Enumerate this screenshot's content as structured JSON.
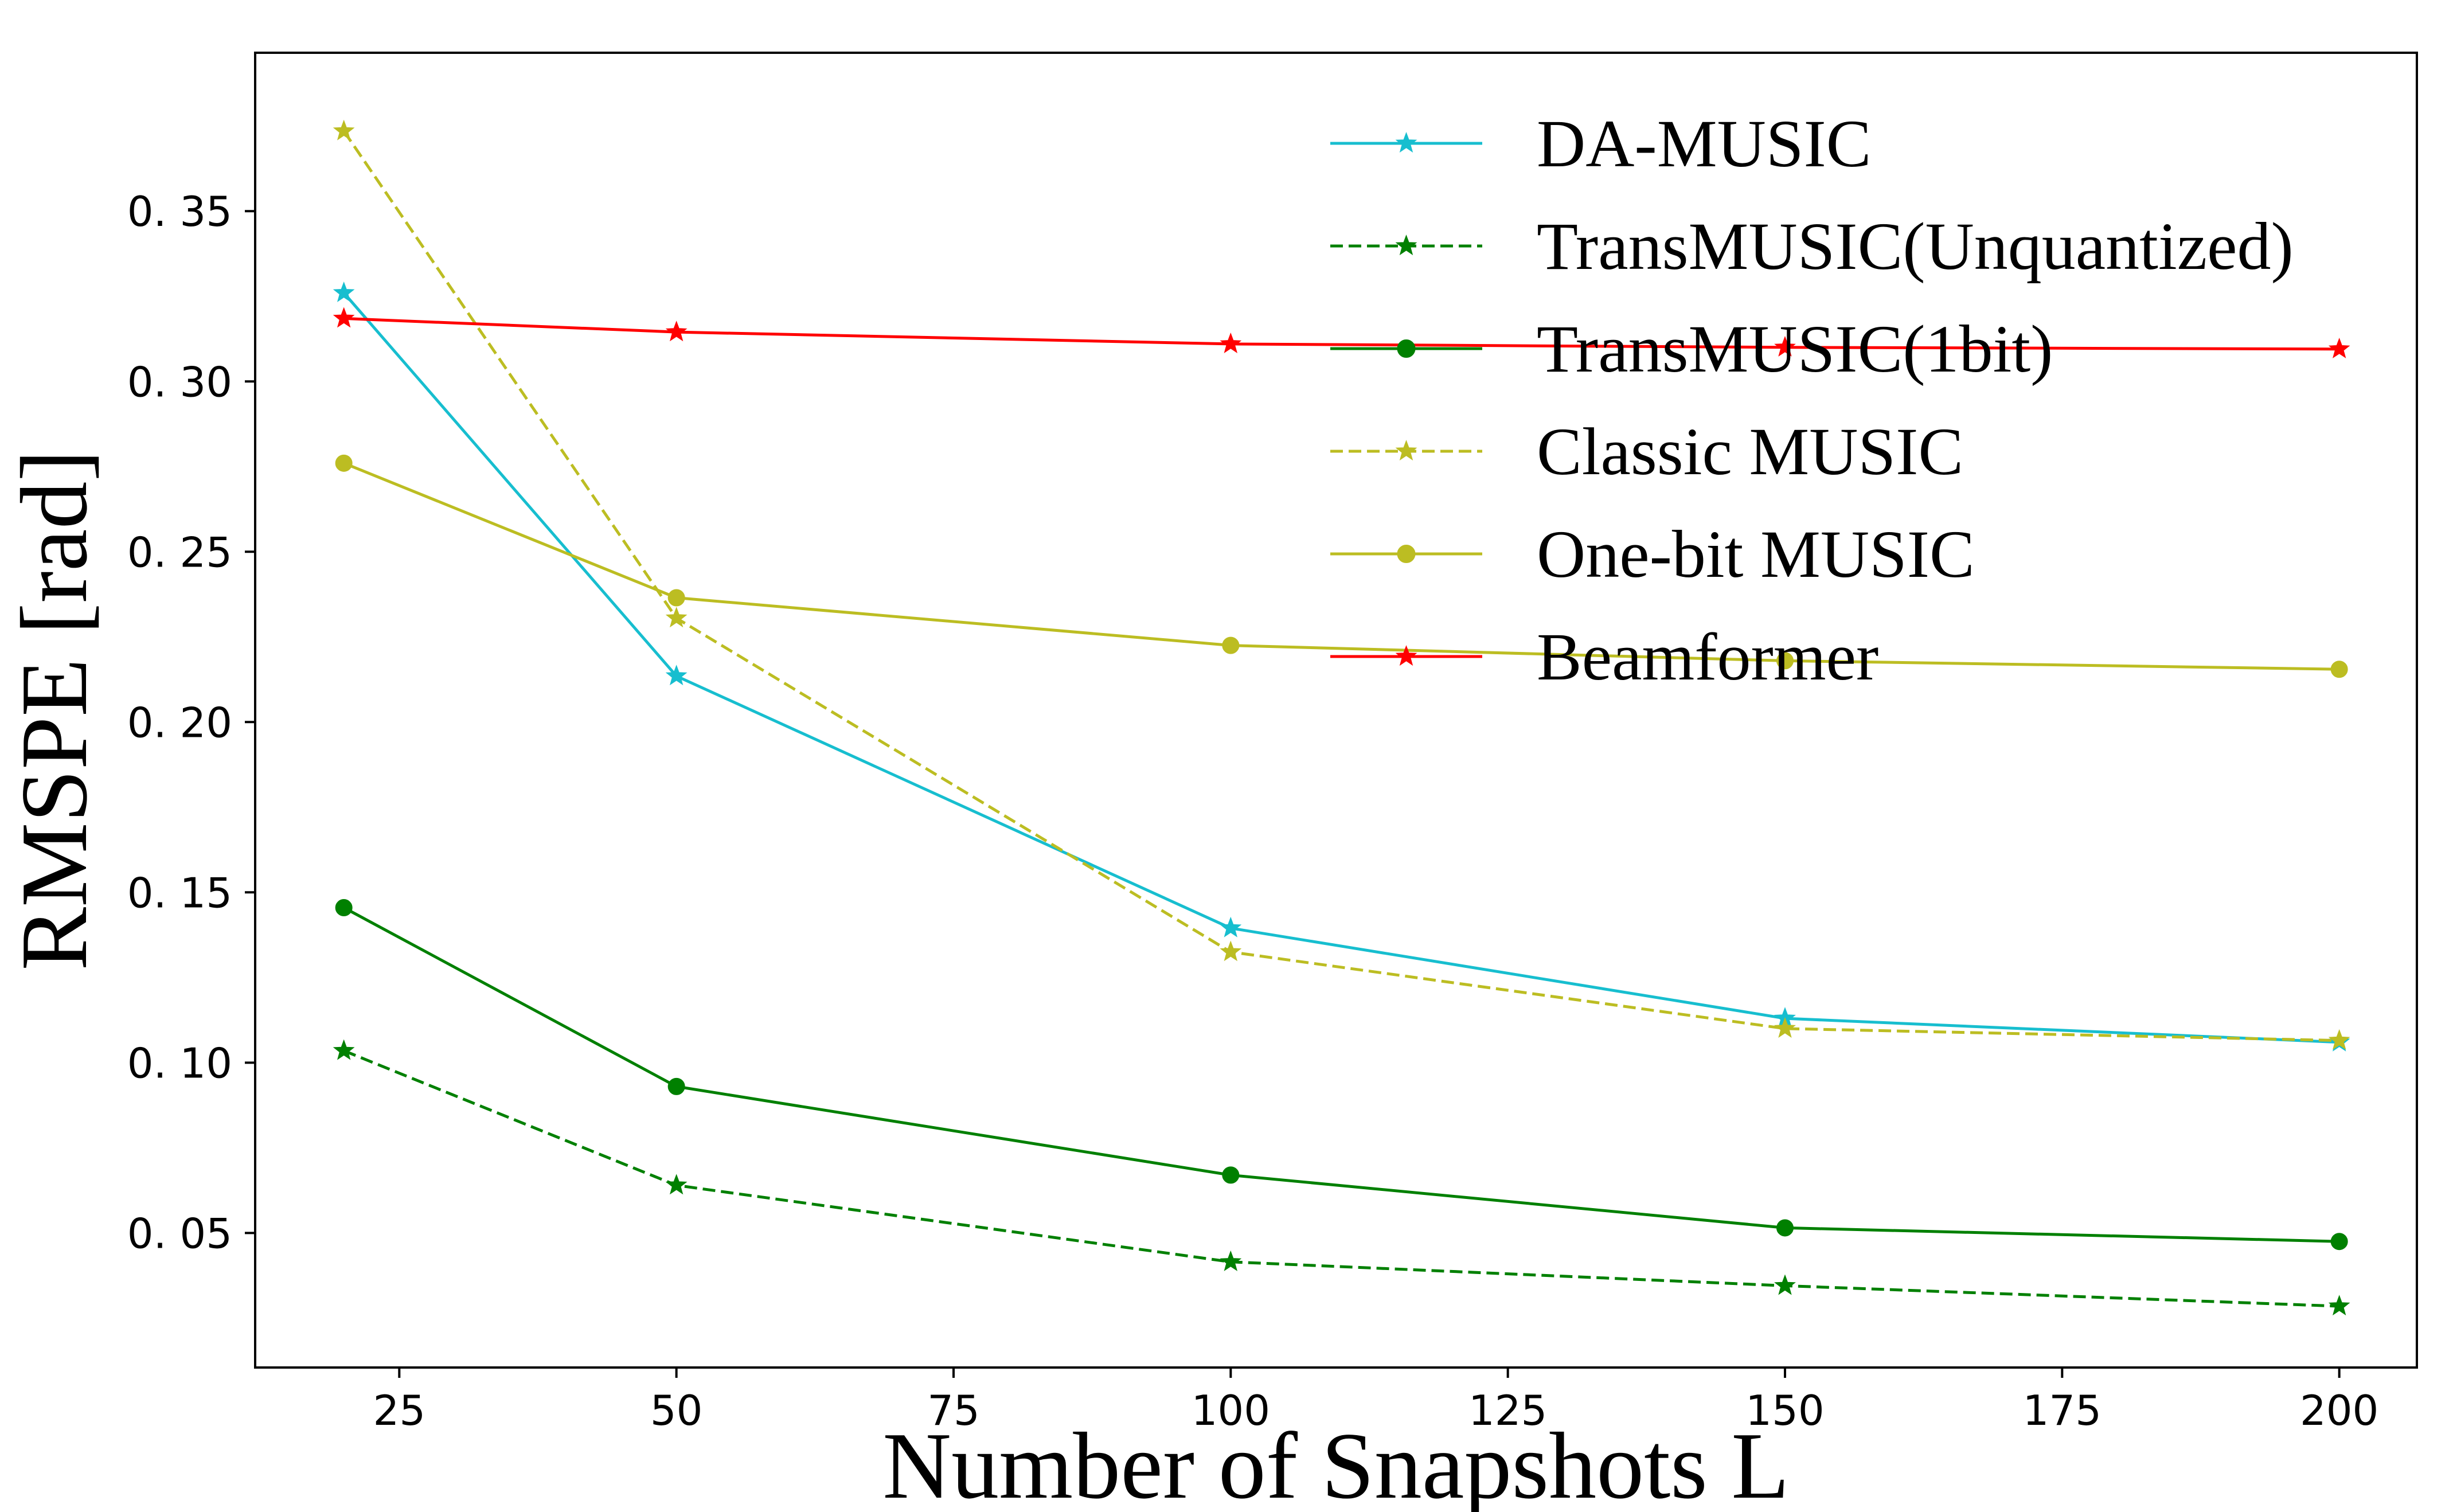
{
  "chart_data": {
    "type": "line",
    "title": "",
    "xlabel": "Number of Snapshots L",
    "ylabel": "RMSPE [rad]",
    "xlim": [
      12,
      207
    ],
    "ylim": [
      0.0105,
      0.3965
    ],
    "x_ticks": [
      25,
      50,
      75,
      100,
      125,
      150,
      175,
      200
    ],
    "x_tick_labels": [
      "25",
      "50",
      "75",
      "100",
      "125",
      "150",
      "175",
      "200"
    ],
    "y_ticks": [
      0.05,
      0.1,
      0.15,
      0.2,
      0.25,
      0.3,
      0.35
    ],
    "y_tick_labels": [
      "0. 05",
      "0. 10",
      "0. 15",
      "0. 20",
      "0. 25",
      "0. 30",
      "0. 35"
    ],
    "grid": false,
    "legend_position": "top-right",
    "x": [
      20,
      50,
      100,
      150,
      200
    ],
    "series": [
      {
        "name": "DA-MUSIC",
        "color": "#17becf",
        "dash": "solid",
        "marker": "star",
        "values": [
          0.326,
          0.2135,
          0.1395,
          0.113,
          0.106
        ]
      },
      {
        "name": "TransMUSIC(Unquantized)",
        "color": "#008000",
        "dash": "dashed",
        "marker": "star",
        "values": [
          0.1035,
          0.064,
          0.0415,
          0.0345,
          0.0285
        ]
      },
      {
        "name": "TransMUSIC(1bit)",
        "color": "#008000",
        "dash": "solid",
        "marker": "circle",
        "values": [
          0.1455,
          0.093,
          0.067,
          0.0515,
          0.0475
        ]
      },
      {
        "name": "Classic MUSIC",
        "color": "#bcbd22",
        "dash": "dashed",
        "marker": "star",
        "values": [
          0.3735,
          0.2305,
          0.1325,
          0.11,
          0.1065
        ]
      },
      {
        "name": "One-bit MUSIC",
        "color": "#bcbd22",
        "dash": "solid",
        "marker": "circle",
        "values": [
          0.276,
          0.2365,
          0.2225,
          0.218,
          0.2155
        ]
      },
      {
        "name": "Beamformer",
        "color": "#ff0000",
        "dash": "solid",
        "marker": "star",
        "values": [
          0.3185,
          0.3145,
          0.311,
          0.31,
          0.3095
        ]
      }
    ]
  }
}
